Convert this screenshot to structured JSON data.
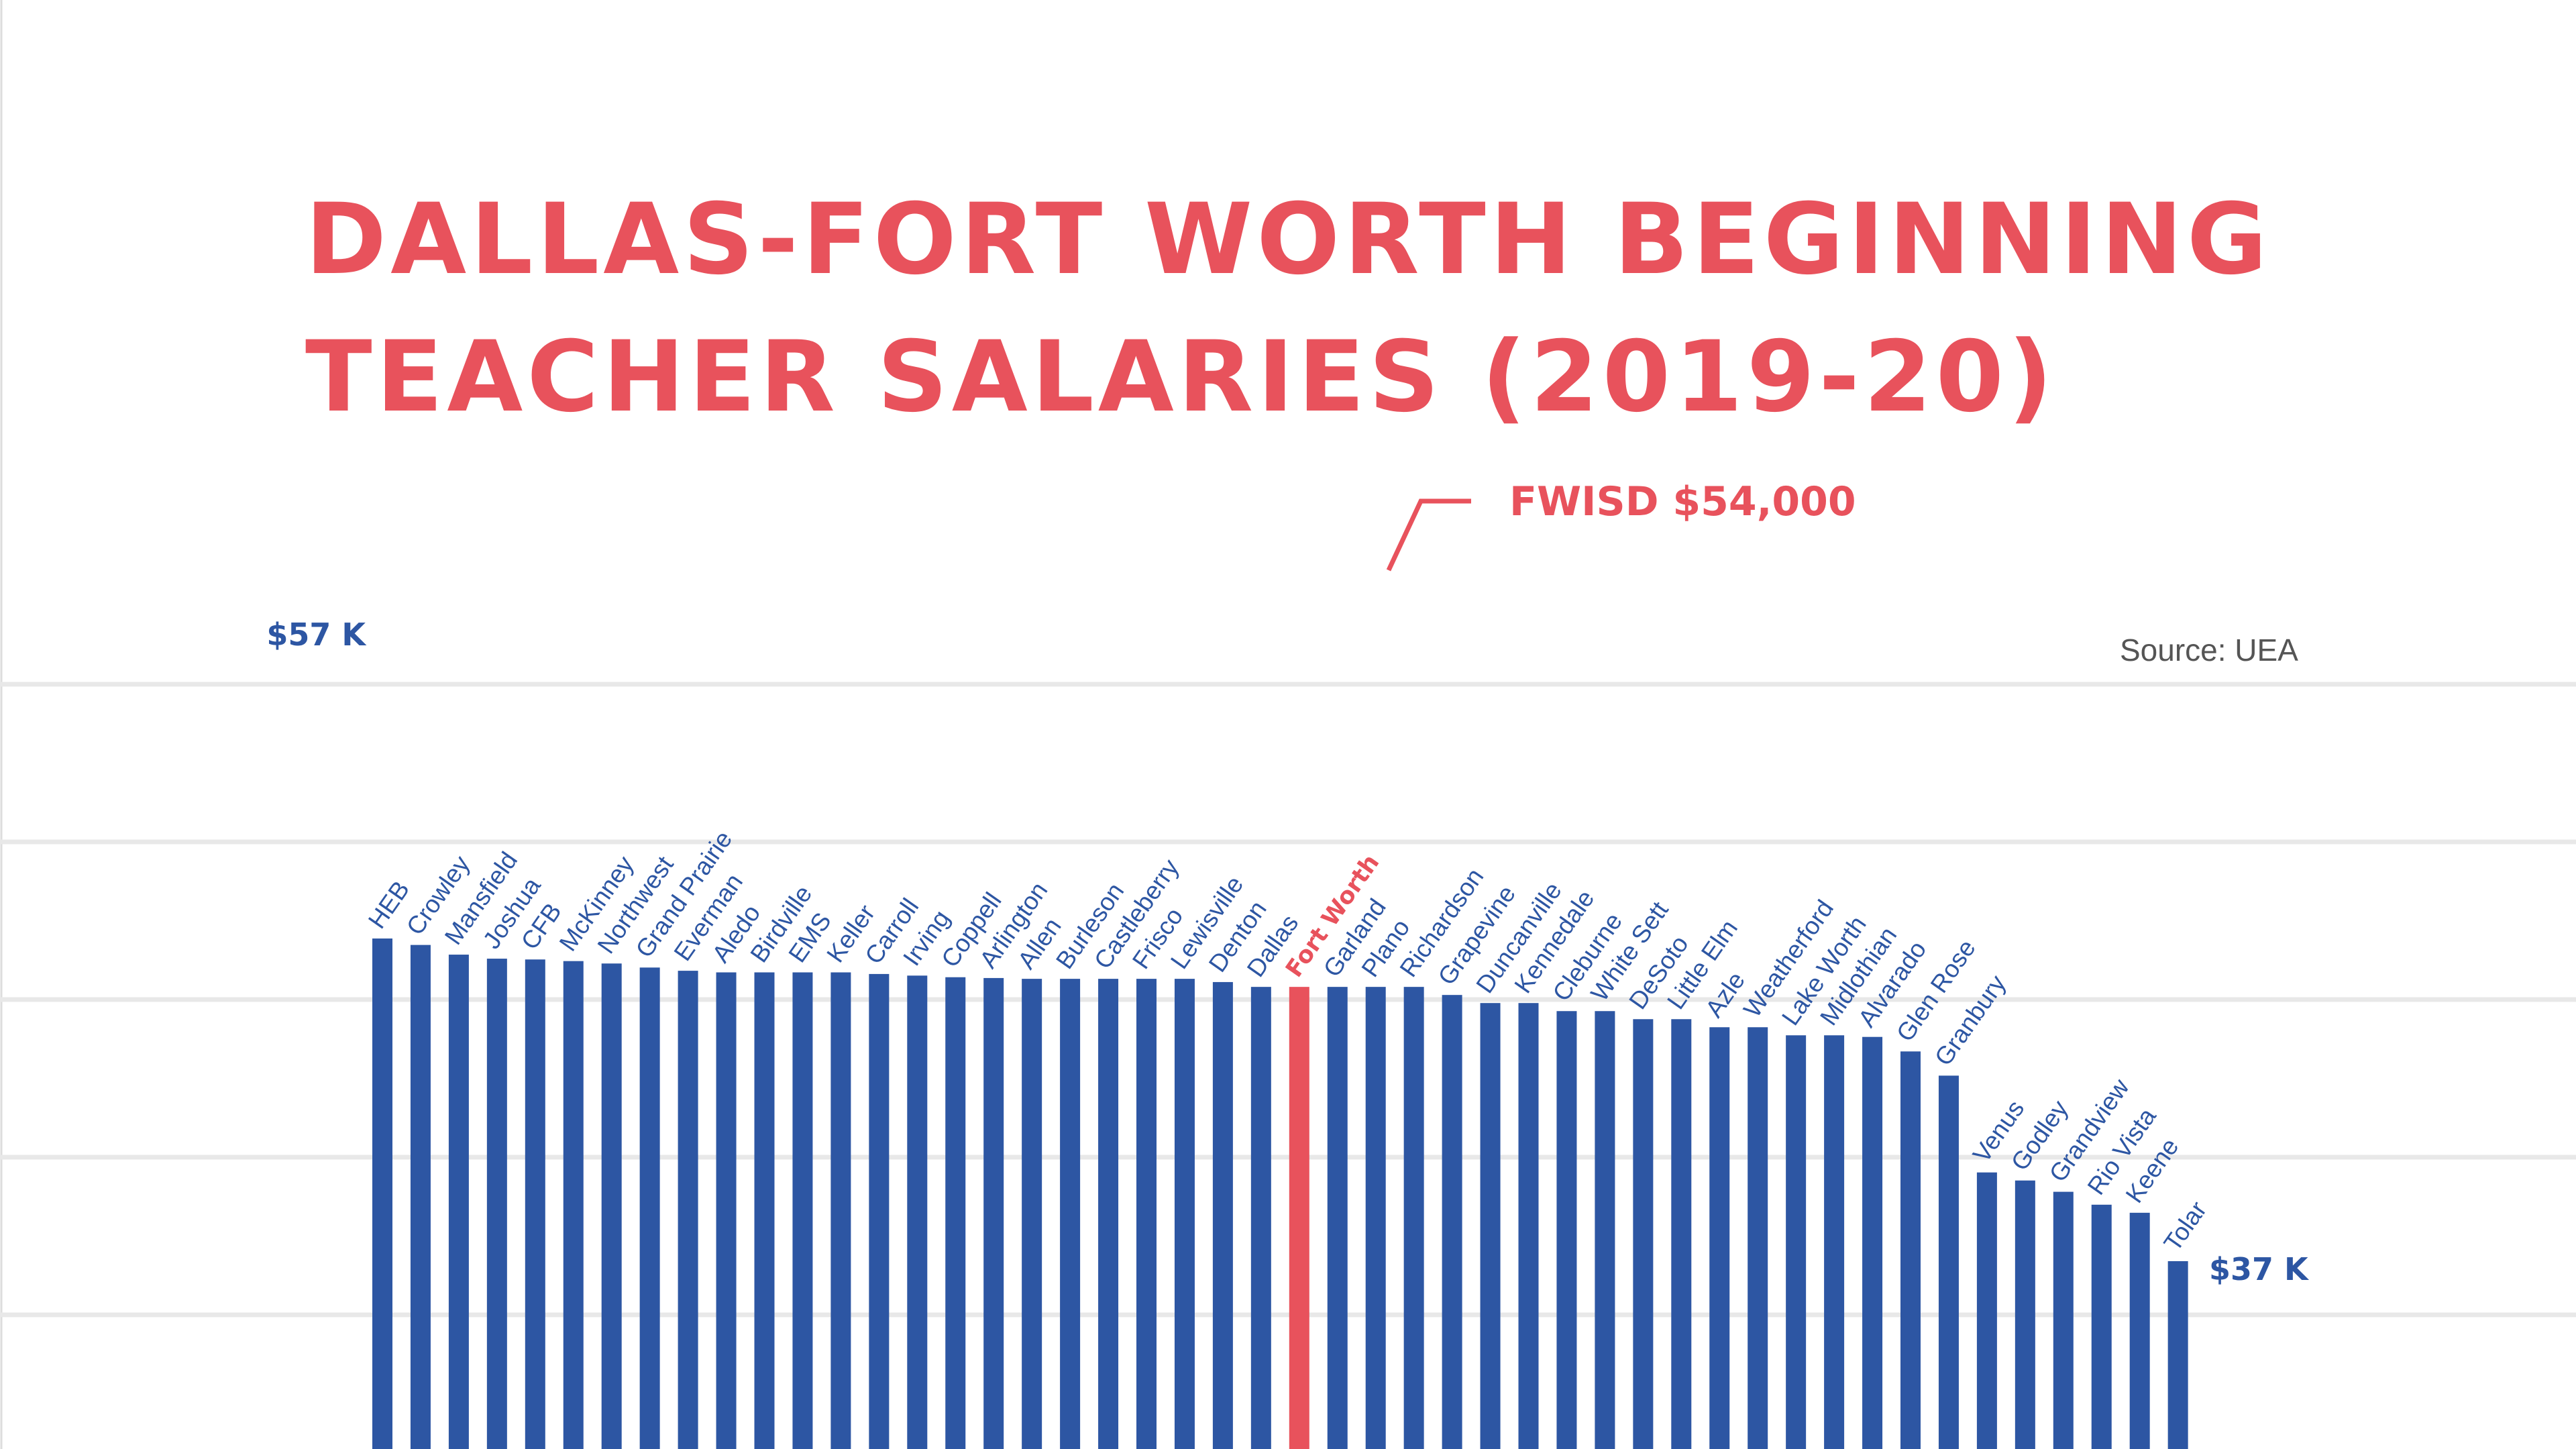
{
  "title_lines": [
    "DALLAS-FORT WORTH BEGINNING",
    "TEACHER SALARIES (2019-20)"
  ],
  "source": "Source: UEA",
  "annotation": "FWISD $54,000",
  "max_label": "$57 K",
  "min_label": "$37 K",
  "colors": {
    "bar": "#2d56a3",
    "highlight": "#e8525c",
    "title": "#e8525c",
    "grid": "#e8e8e8",
    "source": "#555555"
  },
  "chart_data": {
    "type": "bar",
    "title": "DALLAS-FORT WORTH BEGINNING TEACHER SALARIES (2019-20)",
    "unit": "USD",
    "highlight": "Fort Worth",
    "grid": true,
    "categories": [
      "HEB",
      "Crowley",
      "Mansfield",
      "Joshua",
      "CFB",
      "McKinney",
      "Northwest",
      "Grand Prairie",
      "Everman",
      "Aledo",
      "Birdville",
      "EMS",
      "Keller",
      "Carroll",
      "Irving",
      "Coppell",
      "Arlington",
      "Allen",
      "Burleson",
      "Castleberry",
      "Frisco",
      "Lewisville",
      "Denton",
      "Dallas",
      "Fort Worth",
      "Garland",
      "Plano",
      "Richardson",
      "Grapevine",
      "Duncanville",
      "Kennedale",
      "Cleburne",
      "White Sett",
      "DeSoto",
      "Little Elm",
      "Azle",
      "Weatherford",
      "Lake Worth",
      "Midlothian",
      "Alvarado",
      "Glen Rose",
      "Granbury",
      "Venus",
      "Godley",
      "Grandview",
      "Rio Vista",
      "Keene",
      "Tolar"
    ],
    "values": [
      57000,
      56600,
      56000,
      55750,
      55700,
      55600,
      55450,
      55200,
      55000,
      54900,
      54900,
      54900,
      54900,
      54800,
      54700,
      54600,
      54550,
      54500,
      54500,
      54500,
      54500,
      54500,
      54300,
      54000,
      54000,
      54000,
      54000,
      54000,
      53500,
      53000,
      53000,
      52500,
      52500,
      52000,
      52000,
      51500,
      51500,
      51000,
      51000,
      50900,
      50000,
      48500,
      42500,
      42000,
      41300,
      40500,
      40000,
      37000
    ]
  }
}
